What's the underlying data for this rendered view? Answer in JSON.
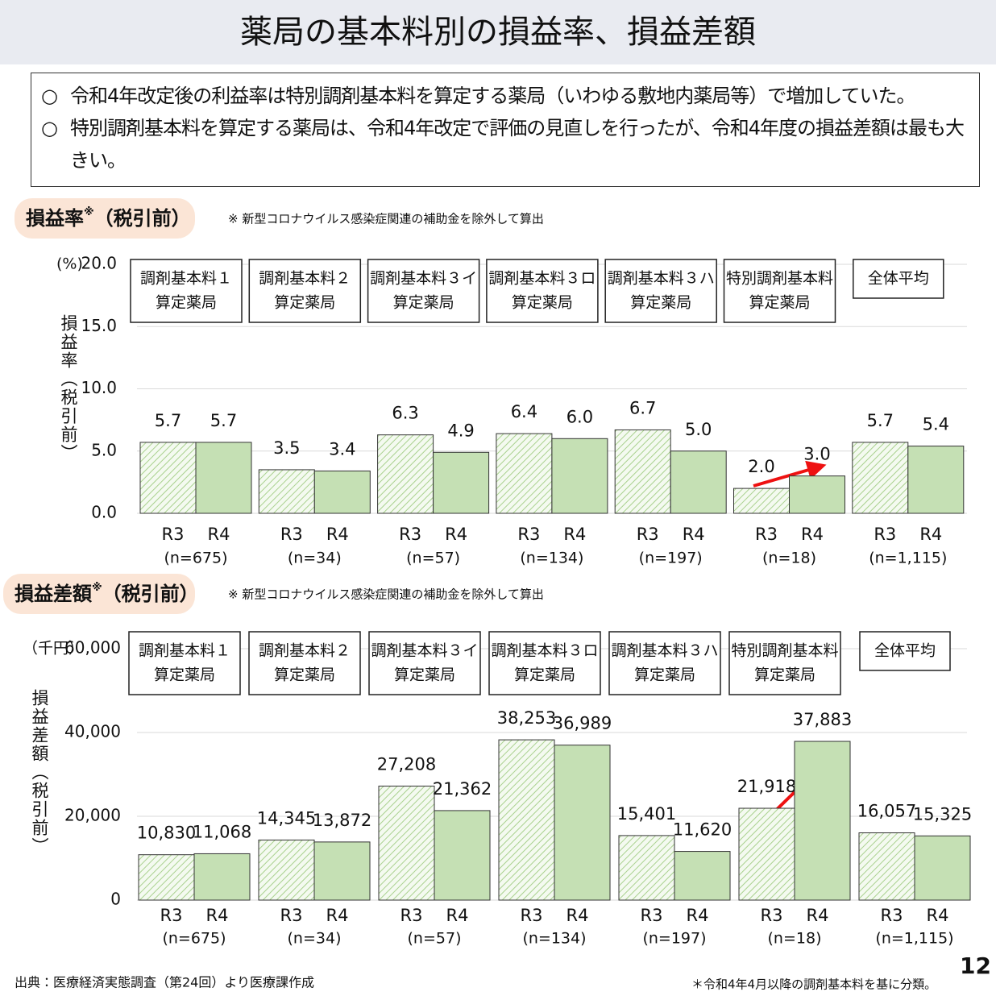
{
  "title": "薬局の基本料別の損益率、損益差額",
  "bullets": [
    "令和4年改定後の利益率は特別調剤基本料を算定する薬局（いわゆる敷地内薬局等）で増加していた。",
    "特別調剤基本料を算定する薬局は、令和4年改定で評価の見直しを行ったが、令和4年度の損益差額は最も大きい。"
  ],
  "bullet_marker": "○",
  "source": "出典：医療経済実態調査（第24回）より医療課作成",
  "footnote": "＊令和4年4月以降の調剤基本料を基に分類。",
  "page_number": "12",
  "chart_data": [
    {
      "type": "bar",
      "title": "損益率",
      "title_mark": "※",
      "title_suffix": "（税引前）",
      "note": "※ 新型コロナウイルス感染症関連の補助金を除外して算出",
      "y_unit": "(%)",
      "ylabel": "損益率（税引前）",
      "categories": [
        [
          "調剤基本料１",
          "算定薬局"
        ],
        [
          "調剤基本料２",
          "算定薬局"
        ],
        [
          "調剤基本料３イ",
          "算定薬局"
        ],
        [
          "調剤基本料３ロ",
          "算定薬局"
        ],
        [
          "調剤基本料３ハ",
          "算定薬局"
        ],
        [
          "特別調剤基本料",
          "算定薬局"
        ],
        [
          "全体平均"
        ]
      ],
      "sample_sizes": [
        "(n=675)",
        "(n=34)",
        "(n=57)",
        "(n=134)",
        "(n=197)",
        "(n=18)",
        "(n=1,115)"
      ],
      "series": [
        {
          "name": "R3",
          "color": "#c5e0b4",
          "hatch": true,
          "values": [
            5.7,
            3.5,
            6.3,
            6.4,
            6.7,
            2.0,
            5.7
          ],
          "value_labels": [
            "5.7",
            "3.5",
            "6.3",
            "6.4",
            "6.7",
            "2.0",
            "5.7"
          ]
        },
        {
          "name": "R4",
          "color": "#c5e0b4",
          "hatch": false,
          "values": [
            5.7,
            3.4,
            4.9,
            6.0,
            5.0,
            3.0,
            5.4
          ],
          "value_labels": [
            "5.7",
            "3.4",
            "4.9",
            "6.0",
            "5.0",
            "3.0",
            "5.4"
          ]
        }
      ],
      "ylim": [
        0,
        20
      ],
      "yticks": [
        {
          "value": 0,
          "label": "0.0"
        },
        {
          "value": 5,
          "label": "5.0"
        },
        {
          "value": 10,
          "label": "10.0"
        },
        {
          "value": 15,
          "label": "15.0"
        },
        {
          "value": 20,
          "label": "20.0"
        }
      ],
      "grid": true
    },
    {
      "type": "bar",
      "title": "損益差額",
      "title_mark": "※",
      "title_suffix": "（税引前）",
      "note": "※ 新型コロナウイルス感染症関連の補助金を除外して算出",
      "y_unit": "（千円）",
      "ylabel": "損益差額（税引前）",
      "categories": [
        [
          "調剤基本料１",
          "算定薬局"
        ],
        [
          "調剤基本料２",
          "算定薬局"
        ],
        [
          "調剤基本料３イ",
          "算定薬局"
        ],
        [
          "調剤基本料３ロ",
          "算定薬局"
        ],
        [
          "調剤基本料３ハ",
          "算定薬局"
        ],
        [
          "特別調剤基本料",
          "算定薬局"
        ],
        [
          "全体平均"
        ]
      ],
      "sample_sizes": [
        "(n=675)",
        "(n=34)",
        "(n=57)",
        "(n=134)",
        "(n=197)",
        "(n=18)",
        "(n=1,115)"
      ],
      "series": [
        {
          "name": "R3",
          "color": "#c5e0b4",
          "hatch": true,
          "values": [
            10830,
            14345,
            27208,
            38253,
            15401,
            21918,
            16057
          ],
          "value_labels": [
            "10,830",
            "14,345",
            "27,208",
            "38,253",
            "15,401",
            "21,918",
            "16,057"
          ]
        },
        {
          "name": "R4",
          "color": "#c5e0b4",
          "hatch": false,
          "values": [
            11068,
            13872,
            21362,
            36989,
            11620,
            37883,
            15325
          ],
          "value_labels": [
            "11,068",
            "13,872",
            "21,362",
            "36,989",
            "11,620",
            "37,883",
            "15,325"
          ]
        }
      ],
      "ylim": [
        0,
        60000
      ],
      "yticks": [
        0,
        {
          "value": 20000,
          "label": "20,000"
        },
        {
          "value": 40000,
          "label": "40,000"
        },
        {
          "value": 60000,
          "label": "60,000"
        }
      ],
      "grid": true
    }
  ]
}
